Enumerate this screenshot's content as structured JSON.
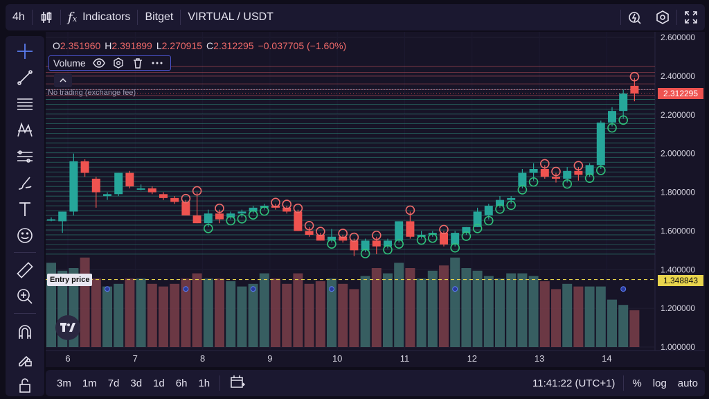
{
  "topbar": {
    "interval": "4h",
    "indicators_label": "Indicators",
    "exchange": "Bitget",
    "symbol": "VIRTUAL / USDT"
  },
  "legend": {
    "o_key": "O",
    "o_val": "2.351960",
    "h_key": "H",
    "h_val": "2.391899",
    "l_key": "L",
    "l_val": "2.270915",
    "c_key": "C",
    "c_val": "2.312295",
    "change": "−0.037705 (−1.60%)"
  },
  "volume_panel": {
    "label": "Volume"
  },
  "overlay": {
    "no_trading": "No trading (exchange fee)",
    "entry_label": "Entry price"
  },
  "price_axis": {
    "ticks": [
      "2.600000",
      "2.400000",
      "2.200000",
      "2.000000",
      "1.800000",
      "1.600000",
      "1.400000",
      "1.200000",
      "1.000000"
    ],
    "current_price": "2.312295",
    "entry_price": "1.348843"
  },
  "time_axis": {
    "ticks": [
      "6",
      "7",
      "8",
      "9",
      "10",
      "11",
      "12",
      "13",
      "14"
    ]
  },
  "bottombar": {
    "ranges": [
      "3m",
      "1m",
      "7d",
      "3d",
      "1d",
      "6h",
      "1h"
    ],
    "clock": "11:41:22 (UTC+1)",
    "percent": "%",
    "log": "log",
    "auto": "auto"
  },
  "colors": {
    "up": "#26a69a",
    "down": "#ef5350",
    "accent": "#4a52c9",
    "entry": "#e8d44d"
  },
  "chart_data": {
    "type": "candlestick",
    "ylim": [
      1.0,
      2.6
    ],
    "xlabels": [
      "6",
      "7",
      "8",
      "9",
      "10",
      "11",
      "12",
      "13",
      "14"
    ],
    "ohlc": [
      [
        1.655,
        1.67,
        1.65,
        1.66
      ],
      [
        1.65,
        1.7,
        1.59,
        1.7
      ],
      [
        1.7,
        2.0,
        1.68,
        1.96
      ],
      [
        1.96,
        1.97,
        1.88,
        1.9
      ],
      [
        1.87,
        1.88,
        1.72,
        1.8
      ],
      [
        1.78,
        1.8,
        1.76,
        1.79
      ],
      [
        1.79,
        1.9,
        1.78,
        1.9
      ],
      [
        1.9,
        1.91,
        1.82,
        1.83
      ],
      [
        1.82,
        1.84,
        1.81,
        1.82
      ],
      [
        1.82,
        1.83,
        1.79,
        1.8
      ],
      [
        1.79,
        1.8,
        1.76,
        1.77
      ],
      [
        1.77,
        1.78,
        1.74,
        1.75
      ],
      [
        1.75,
        1.76,
        1.68,
        1.68
      ],
      [
        1.68,
        1.8,
        1.64,
        1.64
      ],
      [
        1.64,
        1.71,
        1.62,
        1.69
      ],
      [
        1.69,
        1.71,
        1.64,
        1.66
      ],
      [
        1.67,
        1.7,
        1.66,
        1.69
      ],
      [
        1.69,
        1.71,
        1.67,
        1.7
      ],
      [
        1.7,
        1.73,
        1.69,
        1.72
      ],
      [
        1.72,
        1.74,
        1.71,
        1.73
      ],
      [
        1.73,
        1.74,
        1.71,
        1.72
      ],
      [
        1.72,
        1.73,
        1.69,
        1.7
      ],
      [
        1.7,
        1.71,
        1.6,
        1.6
      ],
      [
        1.6,
        1.62,
        1.57,
        1.58
      ],
      [
        1.58,
        1.59,
        1.55,
        1.55
      ],
      [
        1.55,
        1.61,
        1.54,
        1.57
      ],
      [
        1.57,
        1.58,
        1.54,
        1.55
      ],
      [
        1.55,
        1.56,
        1.47,
        1.5
      ],
      [
        1.5,
        1.56,
        1.49,
        1.55
      ],
      [
        1.55,
        1.57,
        1.48,
        1.52
      ],
      [
        1.52,
        1.56,
        1.51,
        1.55
      ],
      [
        1.55,
        1.65,
        1.54,
        1.65
      ],
      [
        1.65,
        1.7,
        1.56,
        1.57
      ],
      [
        1.57,
        1.6,
        1.56,
        1.58
      ],
      [
        1.58,
        1.6,
        1.57,
        1.59
      ],
      [
        1.59,
        1.6,
        1.52,
        1.53
      ],
      [
        1.53,
        1.6,
        1.52,
        1.59
      ],
      [
        1.59,
        1.62,
        1.58,
        1.62
      ],
      [
        1.62,
        1.72,
        1.62,
        1.7
      ],
      [
        1.68,
        1.74,
        1.66,
        1.73
      ],
      [
        1.73,
        1.78,
        1.72,
        1.76
      ],
      [
        1.76,
        1.78,
        1.74,
        1.77
      ],
      [
        1.83,
        1.92,
        1.82,
        1.9
      ],
      [
        1.9,
        1.95,
        1.86,
        1.92
      ],
      [
        1.92,
        1.94,
        1.87,
        1.88
      ],
      [
        1.88,
        1.9,
        1.85,
        1.87
      ],
      [
        1.87,
        1.93,
        1.85,
        1.91
      ],
      [
        1.91,
        1.93,
        1.86,
        1.89
      ],
      [
        1.89,
        1.95,
        1.88,
        1.94
      ],
      [
        1.94,
        2.17,
        1.92,
        2.16
      ],
      [
        2.16,
        2.24,
        2.14,
        2.22
      ],
      [
        2.22,
        2.33,
        2.18,
        2.31
      ],
      [
        2.35,
        2.39,
        2.27,
        2.31
      ]
    ],
    "volume": [
      3.2,
      2.9,
      3.0,
      3.4,
      2.6,
      2.3,
      2.4,
      2.6,
      2.6,
      2.4,
      2.3,
      2.4,
      2.6,
      2.8,
      2.6,
      2.6,
      2.5,
      2.3,
      2.4,
      2.8,
      2.6,
      2.4,
      2.8,
      2.4,
      2.5,
      2.6,
      2.4,
      2.2,
      2.7,
      3.0,
      2.8,
      3.2,
      3.0,
      2.6,
      2.9,
      3.1,
      3.4,
      3.0,
      2.9,
      2.7,
      2.6,
      2.8,
      2.8,
      2.7,
      2.5,
      2.2,
      2.4,
      2.3,
      2.3,
      2.3,
      1.8,
      1.6,
      1.4
    ]
  }
}
